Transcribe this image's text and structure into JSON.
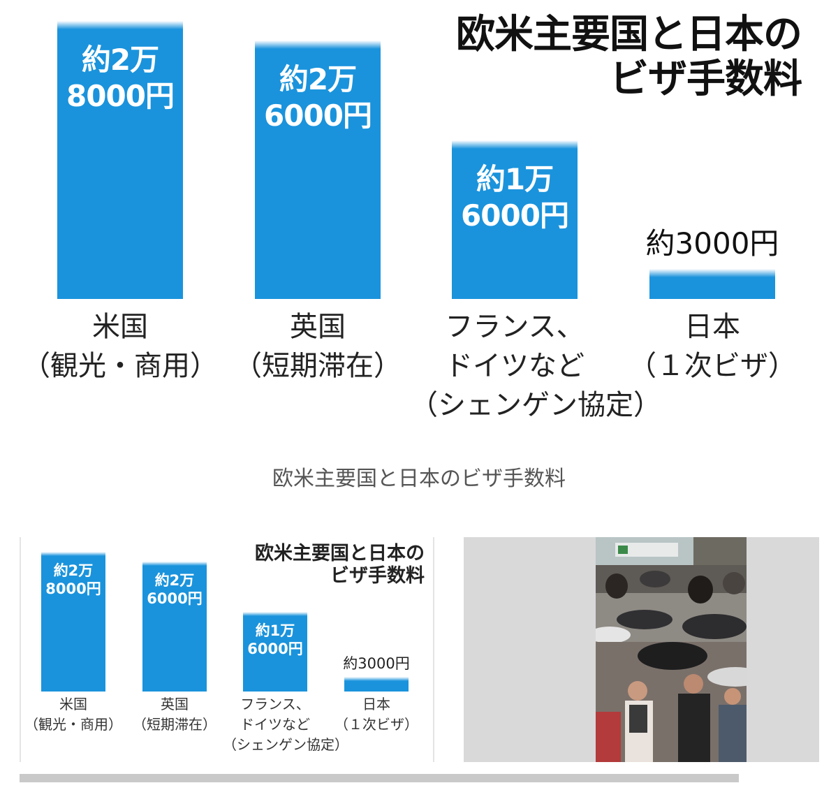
{
  "chart_data": {
    "type": "bar",
    "title": "欧米主要国と日本のビザ手数料",
    "title_lines": [
      "欧米主要国と日本の",
      "ビザ手数料"
    ],
    "categories": [
      "米国（観光・商用）",
      "英国（短期滞在）",
      "フランス、ドイツなど（シェンゲン協定）",
      "日本（１次ビザ）"
    ],
    "category_lines": [
      [
        "米国",
        "（観光・商用）"
      ],
      [
        "英国",
        "（短期滞在）"
      ],
      [
        "フランス、",
        "ドイツなど",
        "（シェンゲン協定）"
      ],
      [
        "日本",
        "（１次ビザ）"
      ]
    ],
    "values": [
      28000,
      26000,
      16000,
      3000
    ],
    "value_labels": [
      [
        "約2万",
        "8000円"
      ],
      [
        "約2万",
        "6000円"
      ],
      [
        "約1万",
        "6000円"
      ],
      [
        "約3000円"
      ]
    ],
    "units": "円",
    "bar_color": "#1a93dc",
    "xlabel": "",
    "ylabel": "",
    "grid": false
  },
  "caption": "欧米主要国と日本のビザ手数料",
  "thumbnail": {
    "chart_caption": "欧米主要国と日本のビザ手数料",
    "photo_alt": "crowd-photo"
  },
  "colors": {
    "bar": "#1a93dc",
    "caption": "#555555",
    "frame": "#d9d9d9",
    "scrollbar": "#c9c9c9"
  }
}
